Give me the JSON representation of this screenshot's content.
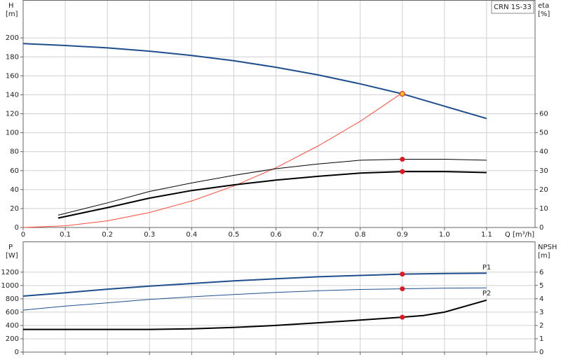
{
  "chart_data": [
    {
      "type": "line",
      "title": "CRN 1S-33",
      "ylabel": "H",
      "yunit": "[m]",
      "y2label": "eta",
      "y2unit": "[%]",
      "xlabel": "Q [m³/h]",
      "xlim": [
        0,
        1.215
      ],
      "xticks": [
        0,
        0.1,
        0.2,
        0.3,
        0.4,
        0.5,
        0.6,
        0.7,
        0.8,
        0.9,
        {
          "value": 1,
          "label": "1.0"
        },
        1.1
      ],
      "ylim": [
        0,
        240
      ],
      "yticks": [
        0,
        20,
        40,
        60,
        80,
        100,
        120,
        140,
        160,
        180,
        200
      ],
      "y2lim": [
        0,
        120
      ],
      "y2ticks": [
        0,
        10,
        20,
        30,
        40,
        50,
        60
      ],
      "grid": true,
      "series": [
        {
          "color": "#1f4e8c",
          "weight": "thick",
          "x": [
            0,
            0.1,
            0.2,
            0.3,
            0.4,
            0.5,
            0.6,
            0.7,
            0.8,
            0.9,
            1,
            1.1
          ],
          "values": [
            194,
            192,
            189.5,
            186,
            181.5,
            176,
            169,
            161,
            151.5,
            141,
            128,
            115
          ]
        },
        {
          "color": "#ff4a3a",
          "weight": "thin",
          "x": [
            0,
            0.1,
            0.2,
            0.3,
            0.4,
            0.5,
            0.6,
            0.7,
            0.8,
            0.9
          ],
          "values": [
            0,
            1.75,
            7,
            15.8,
            28,
            43.8,
            63,
            86,
            112,
            142
          ]
        },
        {
          "color": "#000000",
          "weight": "thin",
          "axis": "y2",
          "x": [
            0.083,
            0.2,
            0.3,
            0.4,
            0.5,
            0.6,
            0.7,
            0.8,
            0.9,
            1,
            1.1
          ],
          "values": [
            6.5,
            13,
            19,
            23.5,
            27.5,
            31,
            33.5,
            35.5,
            36,
            36,
            35.5
          ]
        },
        {
          "color": "#000000",
          "weight": "thick",
          "axis": "y2",
          "x": [
            0.083,
            0.2,
            0.3,
            0.4,
            0.5,
            0.6,
            0.7,
            0.8,
            0.9,
            1,
            1.1
          ],
          "values": [
            5,
            10.5,
            15.5,
            19.5,
            22.5,
            25,
            27,
            28.7,
            29.5,
            29.5,
            29
          ]
        },
        {
          "style": "point",
          "color": "#f5c518",
          "x": [
            0.9
          ],
          "values": [
            141
          ]
        },
        {
          "style": "point",
          "color": "#e8141c",
          "axis": "y2",
          "x": [
            0.9,
            0.9
          ],
          "values": [
            36,
            29.5
          ]
        }
      ]
    },
    {
      "type": "line",
      "ylabel": "P",
      "yunit": "[W]",
      "y2label": "NPSH",
      "y2unit": "[m]",
      "xlim": [
        0,
        1.215
      ],
      "xticks": [
        0,
        0.1,
        0.2,
        0.3,
        0.4,
        0.5,
        0.6,
        0.7,
        0.8,
        0.9,
        1,
        1.1
      ],
      "ylim": [
        0,
        1660
      ],
      "yticks": [
        0,
        200,
        400,
        600,
        800,
        1000,
        1200
      ],
      "y2lim": [
        0,
        8.3
      ],
      "y2ticks": [
        0,
        1,
        2,
        3,
        4,
        5,
        6
      ],
      "grid": true,
      "series": [
        {
          "name": "P1",
          "color": "#1f4e8c",
          "weight": "thick",
          "x": [
            0,
            0.1,
            0.2,
            0.3,
            0.4,
            0.5,
            0.6,
            0.7,
            0.8,
            0.9,
            1,
            1.1
          ],
          "values": [
            840,
            890,
            945,
            990,
            1030,
            1070,
            1100,
            1130,
            1150,
            1170,
            1180,
            1185
          ]
        },
        {
          "name": "P2",
          "color": "#1f4e8c",
          "weight": "thin",
          "x": [
            0,
            0.1,
            0.2,
            0.3,
            0.4,
            0.5,
            0.6,
            0.7,
            0.8,
            0.9,
            1,
            1.1
          ],
          "values": [
            630,
            690,
            740,
            790,
            830,
            865,
            895,
            920,
            940,
            950,
            960,
            965
          ]
        },
        {
          "color": "#000000",
          "weight": "thick",
          "axis": "y2",
          "x": [
            0,
            0.1,
            0.2,
            0.3,
            0.4,
            0.5,
            0.6,
            0.7,
            0.8,
            0.9,
            0.95,
            1,
            1.1
          ],
          "values": [
            1.7,
            1.7,
            1.7,
            1.7,
            1.75,
            1.85,
            2,
            2.2,
            2.4,
            2.62,
            2.75,
            3,
            3.9
          ]
        },
        {
          "style": "point",
          "color": "#e8141c",
          "x": [
            0.9,
            0.9
          ],
          "values": [
            1170,
            950
          ]
        },
        {
          "style": "point",
          "color": "#e8141c",
          "axis": "y2",
          "x": [
            0.9
          ],
          "values": [
            2.62
          ]
        }
      ]
    }
  ]
}
